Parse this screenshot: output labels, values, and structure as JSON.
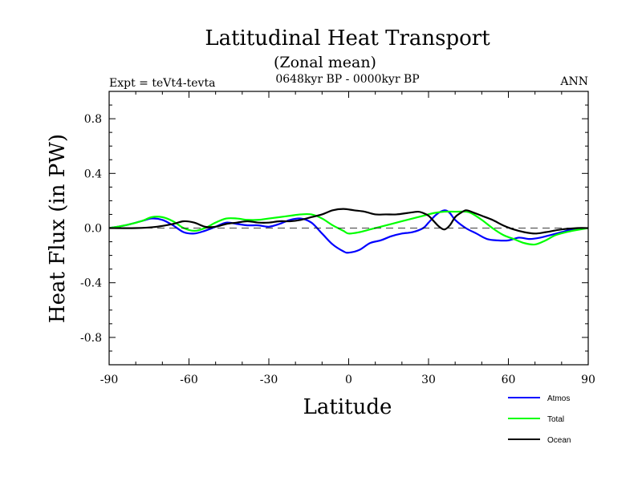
{
  "chart_data": {
    "type": "line",
    "title": "Latitudinal Heat Transport",
    "subtitle": "(Zonal mean)",
    "left_label": "Expt = teVt4-tevta",
    "center_label": "0648kyr BP - 0000kyr BP",
    "right_label": "ANN",
    "xlabel": "Latitude",
    "ylabel": "Heat Flux (in PW)",
    "xlim": [
      -90,
      90
    ],
    "ylim": [
      -1.0,
      1.0
    ],
    "x_tick_labels": [
      "-90",
      "-60",
      "-30",
      "0",
      "30",
      "60",
      "90"
    ],
    "y_tick_labels": [
      "0.8",
      "0.4",
      "0.0",
      "-0.4",
      "-0.8"
    ],
    "zero_line": "dashed",
    "legend_position": "bottom-right",
    "series": [
      {
        "name": "Atmos",
        "color": "#0000ff",
        "x": [
          -90,
          -84,
          -78,
          -74,
          -70,
          -66,
          -62,
          -58,
          -54,
          -50,
          -46,
          -42,
          -38,
          -34,
          -30,
          -26,
          -22,
          -18,
          -14,
          -10,
          -6,
          -2,
          0,
          4,
          8,
          12,
          16,
          20,
          24,
          28,
          30,
          33,
          36,
          38,
          40,
          44,
          48,
          52,
          56,
          60,
          64,
          68,
          72,
          76,
          80,
          84,
          90
        ],
        "y": [
          0.0,
          0.02,
          0.05,
          0.07,
          0.06,
          0.02,
          -0.03,
          -0.04,
          -0.02,
          0.01,
          0.04,
          0.03,
          0.02,
          0.02,
          0.01,
          0.03,
          0.06,
          0.07,
          0.04,
          -0.04,
          -0.12,
          -0.17,
          -0.18,
          -0.16,
          -0.11,
          -0.09,
          -0.06,
          -0.04,
          -0.03,
          0.0,
          0.04,
          0.1,
          0.13,
          0.11,
          0.06,
          0.0,
          -0.04,
          -0.08,
          -0.09,
          -0.09,
          -0.07,
          -0.08,
          -0.07,
          -0.05,
          -0.03,
          -0.01,
          0.0
        ]
      },
      {
        "name": "Total",
        "color": "#00ff00",
        "x": [
          -90,
          -84,
          -78,
          -74,
          -70,
          -66,
          -62,
          -58,
          -54,
          -50,
          -46,
          -42,
          -38,
          -34,
          -30,
          -26,
          -22,
          -18,
          -14,
          -10,
          -6,
          -2,
          0,
          4,
          8,
          12,
          16,
          20,
          24,
          28,
          32,
          36,
          40,
          44,
          46,
          50,
          54,
          58,
          62,
          66,
          70,
          74,
          78,
          84,
          90
        ],
        "y": [
          0.0,
          0.02,
          0.05,
          0.08,
          0.08,
          0.05,
          0.0,
          -0.02,
          0.0,
          0.04,
          0.07,
          0.07,
          0.06,
          0.06,
          0.07,
          0.08,
          0.09,
          0.1,
          0.1,
          0.07,
          0.02,
          -0.02,
          -0.04,
          -0.03,
          -0.01,
          0.01,
          0.03,
          0.05,
          0.07,
          0.09,
          0.11,
          0.12,
          0.12,
          0.12,
          0.11,
          0.06,
          0.0,
          -0.05,
          -0.08,
          -0.11,
          -0.12,
          -0.09,
          -0.05,
          -0.02,
          0.0
        ]
      },
      {
        "name": "Ocean",
        "color": "#000000",
        "x": [
          -90,
          -80,
          -72,
          -66,
          -62,
          -58,
          -54,
          -50,
          -46,
          -42,
          -38,
          -34,
          -30,
          -26,
          -22,
          -18,
          -14,
          -10,
          -6,
          -2,
          2,
          6,
          10,
          14,
          18,
          22,
          26,
          28,
          30,
          32,
          34,
          36,
          38,
          40,
          42,
          44,
          46,
          50,
          54,
          58,
          62,
          66,
          70,
          74,
          80,
          86,
          90
        ],
        "y": [
          0.0,
          0.0,
          0.01,
          0.03,
          0.05,
          0.04,
          0.01,
          0.01,
          0.03,
          0.04,
          0.05,
          0.04,
          0.04,
          0.05,
          0.05,
          0.06,
          0.08,
          0.1,
          0.13,
          0.14,
          0.13,
          0.12,
          0.1,
          0.1,
          0.1,
          0.11,
          0.12,
          0.11,
          0.09,
          0.05,
          0.01,
          -0.01,
          0.02,
          0.08,
          0.11,
          0.13,
          0.12,
          0.09,
          0.06,
          0.02,
          -0.01,
          -0.03,
          -0.04,
          -0.03,
          -0.01,
          0.0,
          0.0
        ]
      }
    ]
  }
}
